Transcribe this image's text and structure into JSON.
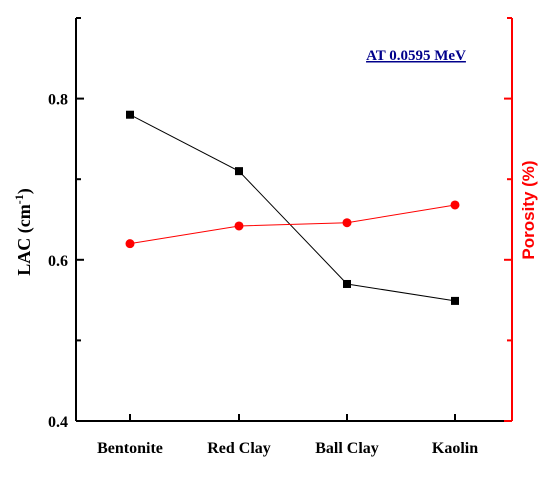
{
  "chart_data": {
    "type": "line",
    "categories": [
      "Bentonite",
      "Red Clay",
      "Ball Clay",
      "Kaolin"
    ],
    "ylabel_left": "LAC (cm",
    "ylabel_left_sup": "-1",
    "ylabel_left_end": ")",
    "ylabel_right": "Porosity (%)",
    "annotation": "AT 0.0595 MeV",
    "ylim_left": [
      0.4,
      0.9
    ],
    "yticks_left": [
      0.4,
      0.6,
      0.8
    ],
    "yticks_left_labels": [
      "0.4",
      "0.6",
      "0.8"
    ],
    "grid": false,
    "series": [
      {
        "axis": "left",
        "color": "#000000",
        "marker": "square",
        "values": [
          0.78,
          0.71,
          0.57,
          0.549
        ]
      },
      {
        "axis": "right",
        "color": "#ff0000",
        "marker": "circle",
        "values_left_scale": [
          0.62,
          0.642,
          0.646,
          0.668
        ]
      }
    ],
    "colors": {
      "left_axis": "#000000",
      "right_axis": "#ff0000",
      "annotation": "#00008b"
    }
  }
}
